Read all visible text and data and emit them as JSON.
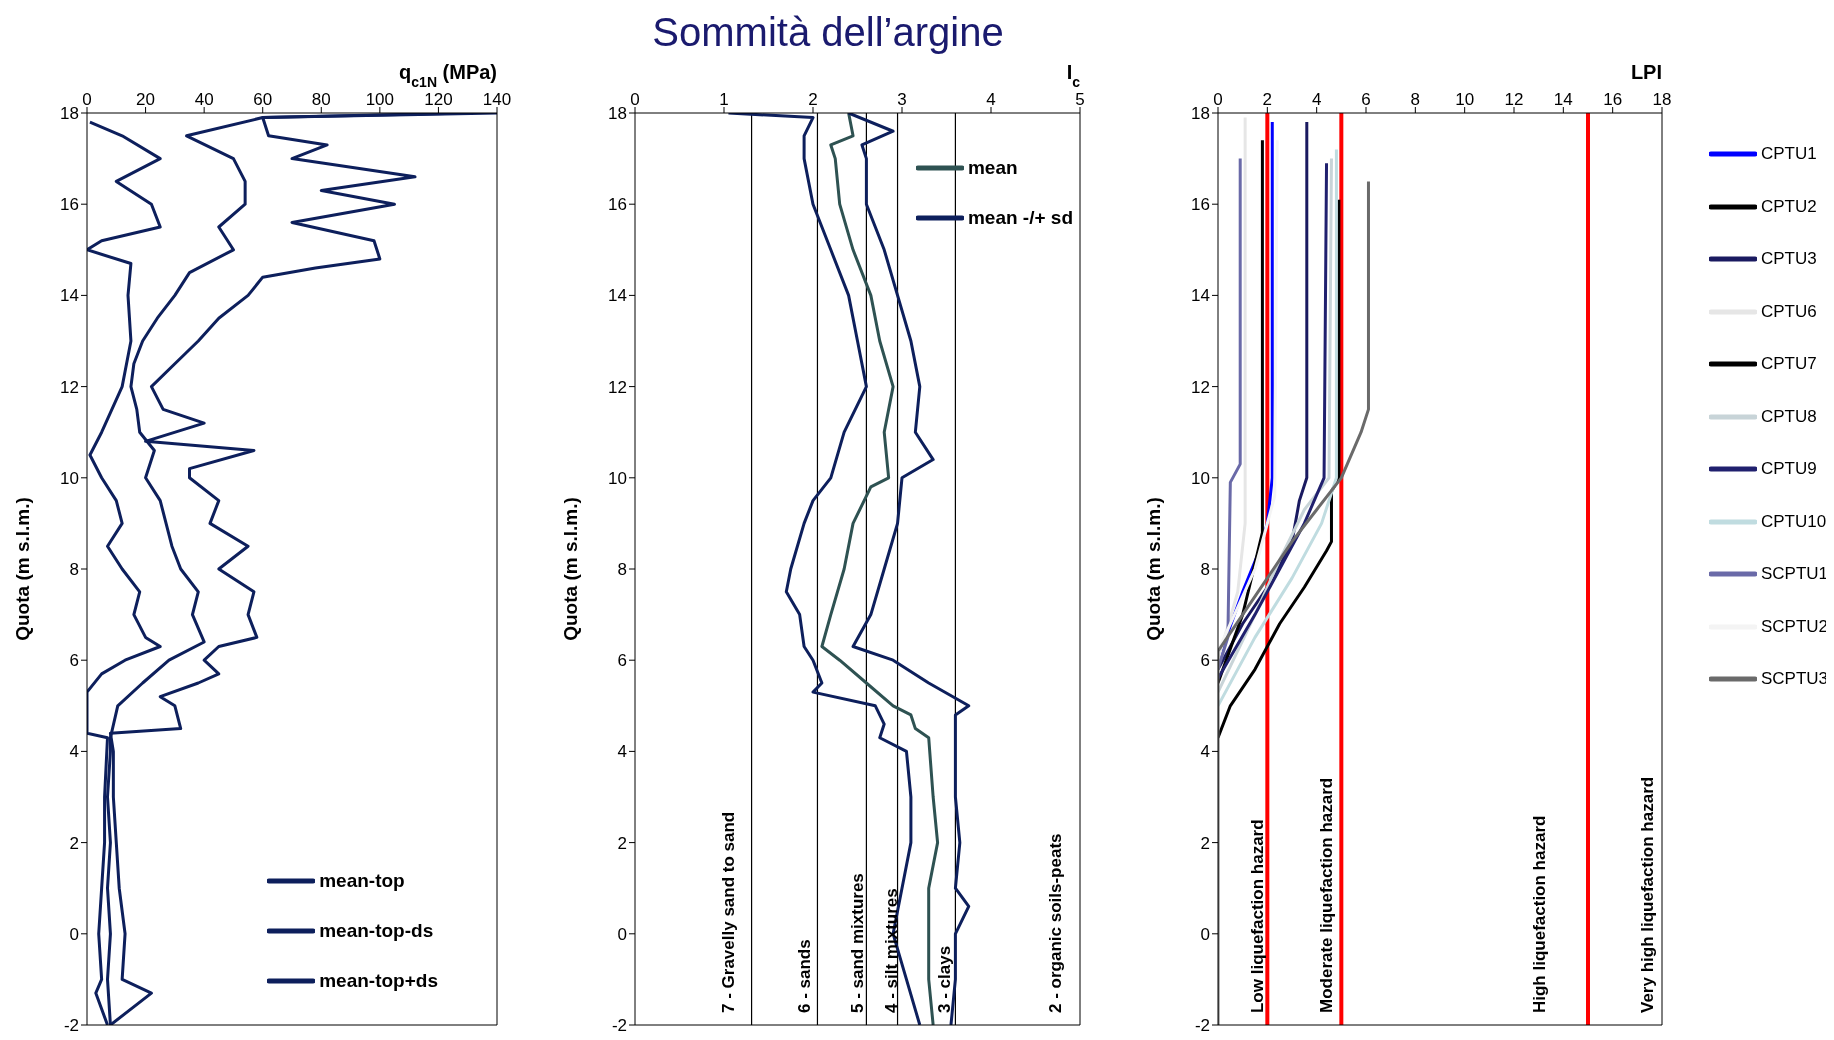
{
  "chart_data": [
    {
      "type": "line",
      "xlabel": "q$_{c1N}$ (MPa)",
      "ylabel": "Quota (m s.l.m.)",
      "xlim": [
        0,
        140
      ],
      "xticks": [
        0,
        20,
        40,
        60,
        80,
        100,
        120,
        140
      ],
      "ylim": [
        -2,
        18
      ],
      "yticks": [
        -2,
        0,
        2,
        4,
        6,
        8,
        10,
        12,
        14,
        16,
        18
      ],
      "legend": "bottom right",
      "series": [
        {
          "name": "mean-top",
          "color": "#0d1f5c",
          "x": [
            8,
            7,
            8,
            7,
            8,
            7,
            8,
            8,
            10.5,
            19,
            28,
            40,
            36,
            38,
            32,
            29,
            27,
            25,
            20,
            23,
            18,
            17,
            15,
            16,
            19,
            24,
            30,
            35,
            50,
            45,
            54,
            54,
            50,
            34,
            60,
            130
          ],
          "values": [
            -2,
            -1,
            0,
            1,
            2,
            3,
            4,
            4.3,
            5,
            5.5,
            6,
            6.4,
            7,
            7.5,
            8,
            8.5,
            9,
            9.5,
            10,
            10.6,
            11,
            11.5,
            12,
            12.5,
            13,
            13.5,
            14,
            14.5,
            15,
            15.5,
            16,
            16.5,
            17,
            17.5,
            17.9,
            18
          ]
        },
        {
          "name": "mean-top-ds",
          "color": "#0d1f5c",
          "x": [
            7,
            3,
            5,
            4,
            5,
            6,
            6,
            7,
            0,
            0,
            0,
            5,
            13,
            25,
            20,
            16,
            18,
            12,
            7,
            12,
            10,
            5,
            1,
            5,
            12,
            15,
            14,
            15,
            0,
            5,
            25,
            22,
            10,
            25,
            12,
            1
          ],
          "values": [
            -2,
            -1.3,
            -1,
            0,
            1,
            2,
            3,
            4.3,
            4.4,
            5,
            5.3,
            5.7,
            6,
            6.3,
            6.5,
            7,
            7.5,
            8,
            8.5,
            9,
            9.5,
            10,
            10.5,
            11,
            12,
            13,
            14,
            14.7,
            15,
            15.2,
            15.5,
            16,
            16.5,
            17,
            17.5,
            17.8
          ]
        },
        {
          "name": "mean-top+ds",
          "color": "#0d1f5c",
          "x": [
            8,
            22,
            12,
            13,
            11,
            10,
            9,
            9,
            8,
            32,
            30,
            25,
            38,
            45,
            40,
            45,
            58,
            55,
            57,
            45,
            55,
            42,
            45,
            35,
            35,
            57,
            20,
            40,
            26,
            22,
            30,
            38,
            45,
            55,
            60,
            78,
            100,
            98,
            70,
            105,
            80,
            112,
            70,
            82,
            62,
            60,
            140
          ],
          "values": [
            -2,
            -1.3,
            -1,
            0,
            1,
            2,
            3,
            4,
            4.4,
            4.5,
            5,
            5.2,
            5.5,
            5.7,
            6,
            6.3,
            6.5,
            7,
            7.5,
            8,
            8.5,
            9,
            9.5,
            10,
            10.2,
            10.6,
            10.8,
            11.2,
            11.5,
            12,
            12.5,
            13,
            13.5,
            14,
            14.4,
            14.6,
            14.8,
            15.2,
            15.6,
            16,
            16.3,
            16.6,
            17,
            17.3,
            17.5,
            17.9,
            18
          ]
        }
      ]
    },
    {
      "type": "line",
      "title": "Sommità dell’argine",
      "xlabel": "I$_{c}$",
      "ylabel": "Quota (m s.l.m.)",
      "xlim": [
        0,
        5
      ],
      "xticks": [
        0,
        1,
        2,
        3,
        4,
        5
      ],
      "ylim": [
        -2,
        18
      ],
      "yticks": [
        -2,
        0,
        2,
        4,
        6,
        8,
        10,
        12,
        14,
        16,
        18
      ],
      "legend": "top right",
      "ref_lines": [
        {
          "axis": "x",
          "value": 1.31,
          "color": "#000000"
        },
        {
          "axis": "x",
          "value": 2.05,
          "color": "#000000"
        },
        {
          "axis": "x",
          "value": 2.6,
          "color": "#000000"
        },
        {
          "axis": "x",
          "value": 2.95,
          "color": "#000000"
        },
        {
          "axis": "x",
          "value": 3.6,
          "color": "#000000"
        }
      ],
      "annotations": [
        "7 - Gravelly sand to sand",
        "6 - sands",
        "5 - sand mixtures",
        "4 - silt mixtures",
        "3 - clays",
        "2 - organic soils-peats"
      ],
      "series": [
        {
          "name": "mean",
          "color": "#2e5252",
          "x": [
            3.35,
            3.3,
            3.3,
            3.3,
            3.4,
            3.35,
            3.3,
            3.15,
            3.1,
            2.9,
            2.6,
            2.3,
            2.1,
            2.2,
            2.35,
            2.45,
            2.65,
            2.85,
            2.8,
            2.9,
            2.75,
            2.65,
            2.45,
            2.3,
            2.25,
            2.2,
            2.45,
            2.4
          ],
          "values": [
            -2,
            -1,
            0,
            1,
            2,
            3,
            4.3,
            4.5,
            4.8,
            5,
            5.5,
            6,
            6.3,
            7,
            8,
            9,
            9.8,
            10,
            11,
            12,
            13,
            14,
            15,
            16,
            17,
            17.3,
            17.5,
            18
          ]
        },
        {
          "name": "mean -/+ sd",
          "color": "#0d1f5c",
          "x": [
            3.2,
            3.05,
            2.9,
            3.0,
            3.1,
            3.1,
            3.05,
            2.75,
            2.8,
            2.7,
            2.0,
            2.1,
            2.0,
            1.9,
            1.85,
            1.7,
            1.75,
            1.9,
            2.0,
            2.2,
            2.35,
            2.6,
            2.5,
            2.4,
            2.2,
            2.0,
            1.9,
            1.9,
            2.0,
            1.05
          ],
          "values": [
            -2,
            -1,
            0,
            1,
            2,
            3,
            4,
            4.3,
            4.6,
            5,
            5.3,
            5.5,
            6,
            6.3,
            7,
            7.5,
            8,
            9,
            9.5,
            10,
            11,
            12,
            13,
            14,
            15,
            16,
            17,
            17.5,
            17.9,
            18
          ]
        },
        {
          "color": "#0d1f5c",
          "x": [
            3.55,
            3.6,
            3.6,
            3.75,
            3.6,
            3.65,
            3.6,
            3.6,
            3.6,
            3.6,
            3.75,
            3.3,
            2.9,
            2.45,
            2.65,
            2.8,
            2.95,
            3.0,
            3.35,
            3.15,
            3.2,
            3.1,
            2.95,
            2.8,
            2.6,
            2.6,
            2.55,
            2.9,
            2.4
          ],
          "values": [
            -2,
            -1,
            0,
            0.6,
            1,
            2,
            3,
            4,
            4.5,
            4.8,
            5,
            5.5,
            6,
            6.3,
            7,
            8,
            9,
            10,
            10.4,
            11,
            12,
            13,
            14,
            15,
            16,
            17,
            17.3,
            17.6,
            18
          ]
        }
      ]
    },
    {
      "type": "line",
      "xlabel": "LPI",
      "ylabel": "Quota (m s.l.m.)",
      "xlim": [
        0,
        18
      ],
      "xticks": [
        0,
        2,
        4,
        6,
        8,
        10,
        12,
        14,
        16,
        18
      ],
      "ylim": [
        -2,
        18
      ],
      "yticks": [
        -2,
        0,
        2,
        4,
        6,
        8,
        10,
        12,
        14,
        16,
        18
      ],
      "legend": "right",
      "ref_lines": [
        {
          "axis": "x",
          "value": 2,
          "color": "#ff0000"
        },
        {
          "axis": "x",
          "value": 5,
          "color": "#ff0000"
        },
        {
          "axis": "x",
          "value": 15,
          "color": "#ff0000"
        }
      ],
      "annotations": [
        "Low liquefaction hazard",
        "Moderate liquefaction hazard",
        "High liquefaction hazard",
        "Very high liquefaction hazard"
      ],
      "series": [
        {
          "name": "CPTU1",
          "color": "#0000ff",
          "x": [
            0,
            1.0,
            1.6,
            2.0,
            2.2,
            2.2
          ],
          "values": [
            6.0,
            7.5,
            8.3,
            9,
            10,
            17.8
          ]
        },
        {
          "name": "CPTU2",
          "color": "#000000",
          "x": [
            0,
            0.5,
            1.5,
            2.5,
            3.5,
            4.4,
            4.6,
            4.6,
            4.9,
            4.9
          ],
          "values": [
            4.3,
            5.0,
            5.8,
            6.8,
            7.6,
            8.4,
            8.6,
            9.7,
            10,
            16.1
          ]
        },
        {
          "name": "CPTU3",
          "color": "#1a1a60",
          "x": [
            0,
            1,
            2,
            3,
            3.3,
            3.6,
            3.6
          ],
          "values": [
            5.8,
            6.8,
            7.6,
            8.6,
            9.5,
            10,
            17.8
          ]
        },
        {
          "name": "CPTU6",
          "color": "#e6e6e6",
          "x": [
            0,
            0.8,
            1.1,
            1.1
          ],
          "values": [
            6,
            7.5,
            9,
            17.9
          ]
        },
        {
          "name": "CPTU7",
          "color": "#000000",
          "x": [
            0,
            1.0,
            1.8,
            1.8
          ],
          "values": [
            5.5,
            7,
            8.8,
            17.4
          ]
        },
        {
          "name": "CPTU8",
          "color": "#c8d4d8",
          "x": [
            0,
            1.5,
            2.5,
            3.5,
            4.5,
            4.6
          ],
          "values": [
            5.3,
            7,
            8.2,
            9.3,
            10,
            17.0
          ]
        },
        {
          "name": "CPTU9",
          "color": "#20206e",
          "x": [
            0,
            1.5,
            2.5,
            3.5,
            4.3,
            4.4
          ],
          "values": [
            5.6,
            7,
            8,
            9,
            10,
            16.9
          ]
        },
        {
          "name": "CPTU10",
          "color": "#c0dce0",
          "x": [
            0,
            1.5,
            3,
            4.2,
            4.8,
            4.8
          ],
          "values": [
            5.0,
            6.5,
            7.8,
            9,
            10,
            17.2
          ]
        },
        {
          "name": "SCPTU1",
          "color": "#6a6aa8",
          "x": [
            0,
            0.4,
            0.5,
            0.9,
            0.9
          ],
          "values": [
            5.8,
            6.5,
            9.9,
            10.3,
            17.0
          ]
        },
        {
          "name": "SCPTU2",
          "color": "#f4f4f4",
          "x": [
            0,
            1.5,
            2.3,
            2.4
          ],
          "values": [
            6.2,
            8,
            9.6,
            17.4
          ]
        },
        {
          "name": "SCPTU3",
          "color": "#6a6a6a",
          "x": [
            0,
            0,
            1,
            2,
            3,
            4,
            5,
            5.8,
            6.1,
            6.1
          ],
          "values": [
            -2,
            6.2,
            7.0,
            7.8,
            8.6,
            9.3,
            10.0,
            11.0,
            11.5,
            16.5
          ]
        }
      ]
    }
  ]
}
